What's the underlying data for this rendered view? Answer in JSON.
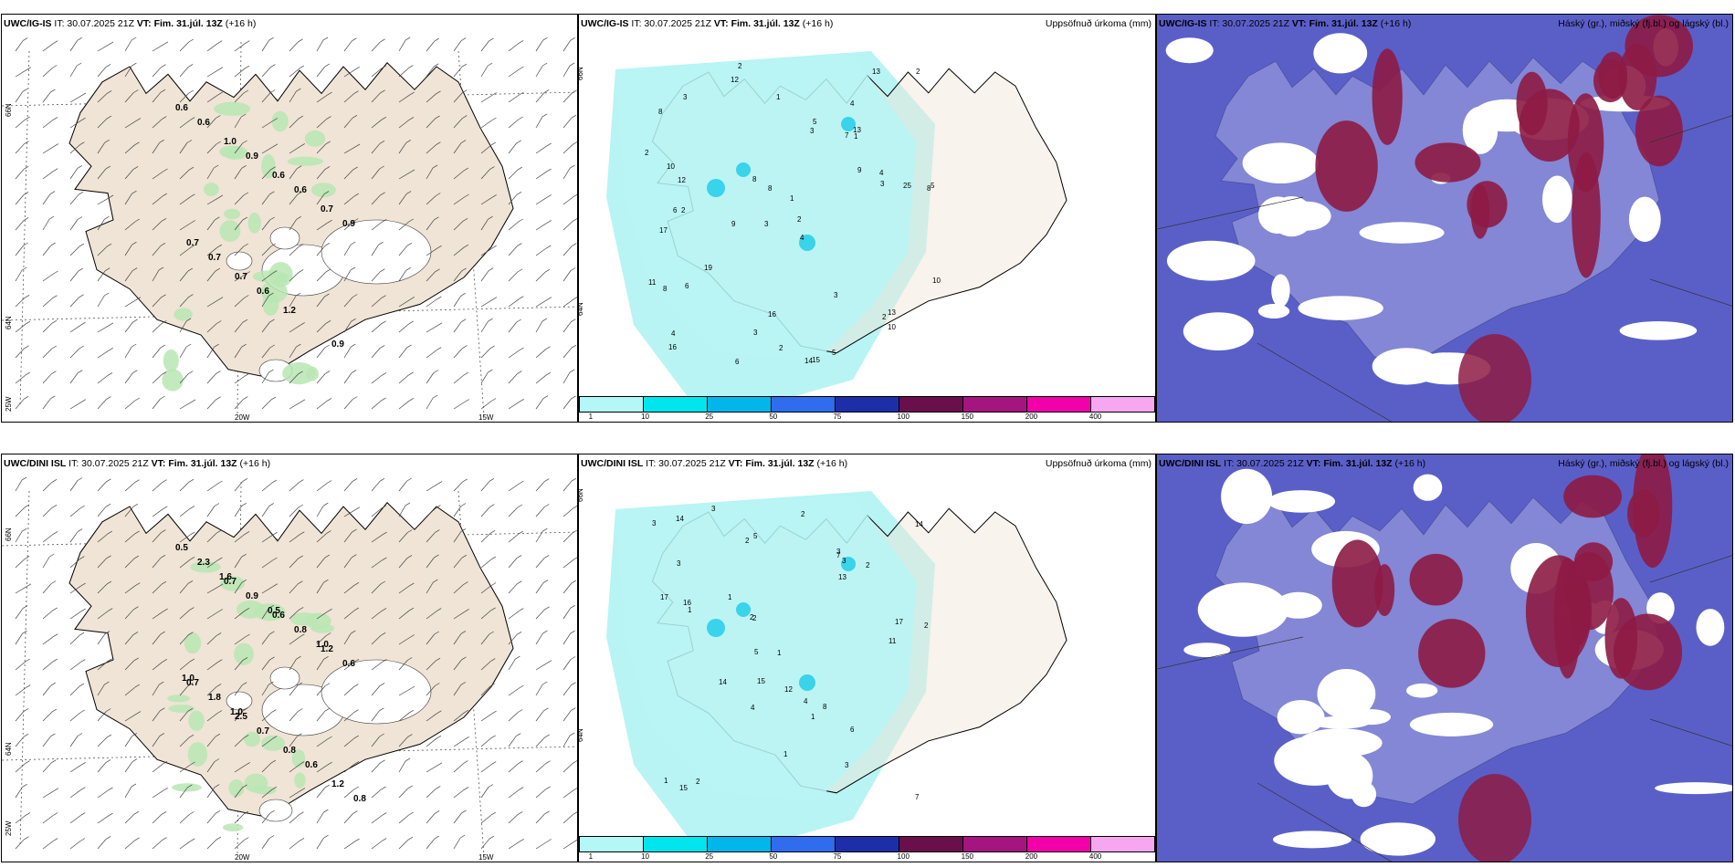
{
  "rows": [
    {
      "model_label": "UWC/IG-IS",
      "header_rest": " IT: 30.07.2025 21Z ",
      "vt_label": "VT: Fim. 31.júl. 13Z",
      "lead": " (+16 h)",
      "precip_title": "Uppsöfnuð úrkoma (mm)",
      "cloud_title": "Háský (gr.), miðský (fj.bl.) og lágský (bl.)",
      "lat_labels": [
        "66N",
        "64N"
      ],
      "lon_labels": [
        "25W",
        "20W",
        "15W"
      ],
      "wind_values": [
        "0.6",
        "1.0",
        "0.6",
        "0.7",
        "0.7",
        "0.7",
        "1.2",
        "0.9",
        "0.6",
        "0.9",
        "0.6",
        "0.9",
        "0.7",
        "0.6"
      ],
      "precip_values": [
        "2",
        "4",
        "8",
        "3",
        "4",
        "2",
        "8",
        "7",
        "17",
        "3",
        "1",
        "16",
        "12",
        "9",
        "14",
        "15",
        "16",
        "13",
        "9",
        "19",
        "12",
        "6",
        "5",
        "25",
        "11",
        "10",
        "8",
        "3",
        "13",
        "8",
        "2",
        "5",
        "6",
        "8",
        "3",
        "10",
        "4",
        "3",
        "2",
        "1",
        "4",
        "6",
        "5",
        "3",
        "2",
        "1",
        "10",
        "13",
        "2",
        "2"
      ]
    },
    {
      "model_label": "UWC/DINI ISL",
      "header_rest": " IT: 30.07.2025 21Z ",
      "vt_label": "VT: Fim. 31.júl. 13Z",
      "lead": " (+16 h)",
      "precip_title": "Uppsöfnuð úrkoma (mm)",
      "cloud_title": "Háský (gr.), miðský (fj.bl.) og lágský (bl.)",
      "lat_labels": [
        "66N",
        "64N"
      ],
      "lon_labels": [
        "25W",
        "20W",
        "15W"
      ],
      "wind_values": [
        "0.5",
        "0.7",
        "0.6",
        "1.2",
        "0.7",
        "2.5",
        "0.8",
        "1.2",
        "2.3",
        "0.9",
        "0.8",
        "0.6",
        "1.8",
        "0.7",
        "0.6",
        "0.8",
        "1.6",
        "0.5",
        "1.0",
        "1.0",
        "1.0"
      ],
      "precip_values": [
        "2",
        "1",
        "5",
        "3",
        "2",
        "4",
        "2",
        "15",
        "7",
        "12",
        "11",
        "17",
        "14",
        "17",
        "13",
        "3",
        "5",
        "3",
        "15",
        "16",
        "14",
        "2",
        "3",
        "6",
        "8",
        "1",
        "4",
        "3",
        "2",
        "1",
        "1",
        "2",
        "7",
        "3",
        "14",
        "2",
        "1",
        "1"
      ]
    }
  ],
  "colorbar": {
    "ticks": [
      "1",
      "10",
      "25",
      "50",
      "75",
      "100",
      "150",
      "200",
      "400"
    ],
    "colors": [
      "#b3f7f7",
      "#00e5ee",
      "#00b6ea",
      "#2f6cee",
      "#1d2fa8",
      "#6a0f4c",
      "#a5157f",
      "#f200a9",
      "#f7a6f0"
    ]
  },
  "palette": {
    "land": "#efe4d5",
    "precip_light": "#b8f4f4",
    "cloud_low": "#5a5fc8",
    "cloud_high": "#8d1b44",
    "wind_green": "#b8e6b3"
  }
}
